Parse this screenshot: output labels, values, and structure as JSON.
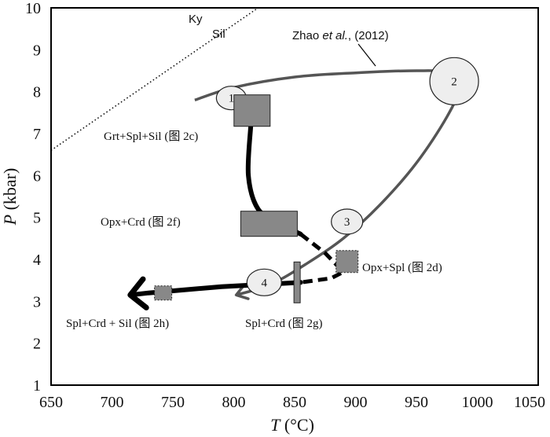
{
  "chart_data": {
    "type": "line",
    "title": "",
    "xlabel": {
      "var": "T",
      "unit": " (°C)"
    },
    "ylabel": {
      "var": "P",
      "unit": " (kbar)"
    },
    "xlim": [
      650,
      1050
    ],
    "ylim": [
      1,
      10
    ],
    "xticks": [
      "650",
      "700",
      "750",
      "800",
      "850",
      "900",
      "950",
      "1000",
      "1050"
    ],
    "yticks": [
      "1",
      "2",
      "3",
      "4",
      "5",
      "6",
      "7",
      "8",
      "9",
      "10"
    ],
    "ky_sil_line": [
      [
        650,
        6.6
      ],
      [
        700,
        7.6
      ],
      [
        750,
        8.6
      ],
      [
        800,
        9.6
      ],
      [
        820,
        10.0
      ]
    ],
    "ky_label": "Ky",
    "sil_label": "Sil",
    "series": [
      {
        "name": "Zhao et al., (2012)",
        "points": [
          [
            768,
            7.8
          ],
          [
            800,
            8.1
          ],
          [
            850,
            8.35
          ],
          [
            900,
            8.45
          ],
          [
            950,
            8.5
          ],
          [
            975,
            8.45
          ],
          [
            985,
            8.1
          ],
          [
            975,
            7.4
          ],
          [
            950,
            6.3
          ],
          [
            920,
            5.3
          ],
          [
            890,
            4.5
          ],
          [
            860,
            3.9
          ],
          [
            830,
            3.4
          ],
          [
            802,
            3.15
          ]
        ]
      }
    ],
    "author_label": {
      "pre": "Zhao ",
      "italic": "et al.",
      "post": ", (2012)"
    },
    "stage_markers": [
      {
        "label": "1",
        "T": 798,
        "P": 7.85
      },
      {
        "label": "2",
        "T": 981,
        "P": 8.25
      },
      {
        "label": "3",
        "T": 893,
        "P": 4.9
      },
      {
        "label": "4",
        "T": 825,
        "P": 3.45
      }
    ],
    "retrograde_path": [
      [
        814,
        7.2
      ],
      [
        812,
        6.0
      ],
      [
        820,
        5.2
      ],
      [
        838,
        4.85
      ],
      [
        855,
        4.6
      ],
      [
        875,
        4.15
      ],
      [
        890,
        3.7
      ],
      [
        880,
        3.55
      ],
      [
        855,
        3.45
      ],
      [
        790,
        3.35
      ],
      [
        730,
        3.2
      ],
      [
        715,
        3.15
      ]
    ],
    "assemblages": [
      {
        "label": "Grt+Spl+Sil (图 2c)",
        "T": 815,
        "P": 7.55
      },
      {
        "label": "Opx+Crd (图 2f)",
        "T": 829,
        "P": 4.85
      },
      {
        "label": "Opx+Spl (图  2d)",
        "T": 893,
        "P": 3.95
      },
      {
        "label": "Spl+Crd (图 2g)",
        "T": 852,
        "P": 3.45
      },
      {
        "label": "Spl+Crd + Sil (图  2h)",
        "T": 742,
        "P": 3.2
      }
    ]
  }
}
